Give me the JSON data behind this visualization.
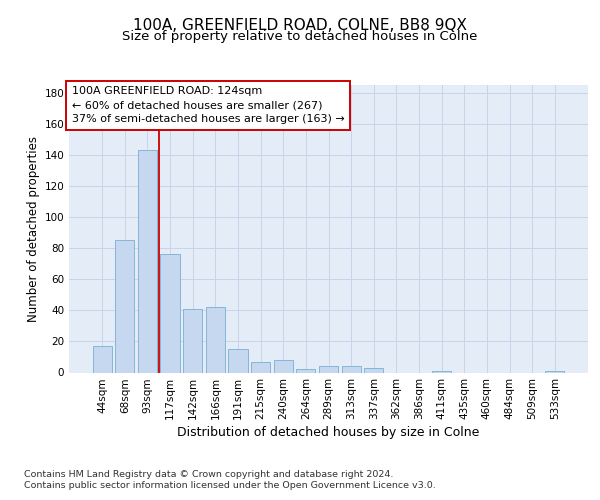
{
  "title_line1": "100A, GREENFIELD ROAD, COLNE, BB8 9QX",
  "title_line2": "Size of property relative to detached houses in Colne",
  "xlabel": "Distribution of detached houses by size in Colne",
  "ylabel": "Number of detached properties",
  "categories": [
    "44sqm",
    "68sqm",
    "93sqm",
    "117sqm",
    "142sqm",
    "166sqm",
    "191sqm",
    "215sqm",
    "240sqm",
    "264sqm",
    "289sqm",
    "313sqm",
    "337sqm",
    "362sqm",
    "386sqm",
    "411sqm",
    "435sqm",
    "460sqm",
    "484sqm",
    "509sqm",
    "533sqm"
  ],
  "values": [
    17,
    85,
    143,
    76,
    41,
    42,
    15,
    7,
    8,
    2,
    4,
    4,
    3,
    0,
    0,
    1,
    0,
    0,
    0,
    0,
    1
  ],
  "bar_color": "#c5d8f0",
  "bar_edge_color": "#7aaed4",
  "property_line_x": 2.5,
  "property_line_color": "#cc0000",
  "annotation_text": "100A GREENFIELD ROAD: 124sqm\n← 60% of detached houses are smaller (267)\n37% of semi-detached houses are larger (163) →",
  "annotation_box_facecolor": "#ffffff",
  "annotation_box_edgecolor": "#cc0000",
  "ylim": [
    0,
    185
  ],
  "yticks": [
    0,
    20,
    40,
    60,
    80,
    100,
    120,
    140,
    160,
    180
  ],
  "grid_color": "#c8d4e8",
  "background_color": "#e4ecf7",
  "footer_line1": "Contains HM Land Registry data © Crown copyright and database right 2024.",
  "footer_line2": "Contains public sector information licensed under the Open Government Licence v3.0.",
  "title_fontsize": 11,
  "subtitle_fontsize": 9.5,
  "ylabel_fontsize": 8.5,
  "xlabel_fontsize": 9,
  "tick_fontsize": 7.5,
  "annotation_fontsize": 8,
  "footer_fontsize": 6.8
}
